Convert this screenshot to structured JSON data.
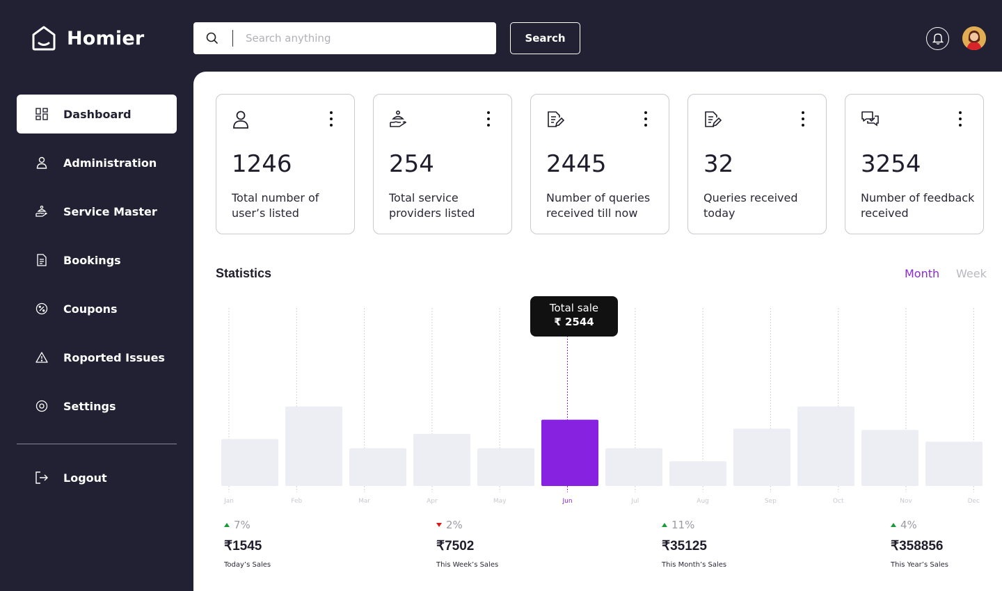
{
  "app": {
    "name": "Homier"
  },
  "header": {
    "search_placeholder": "Search anything",
    "search_button": "Search"
  },
  "sidebar": {
    "items": [
      {
        "label": "Dashboard",
        "icon": "dashboard-icon",
        "active": true
      },
      {
        "label": "Administration",
        "icon": "user-icon"
      },
      {
        "label": "Service Master",
        "icon": "service-hand-icon"
      },
      {
        "label": "Bookings",
        "icon": "document-icon"
      },
      {
        "label": "Coupons",
        "icon": "coupon-icon"
      },
      {
        "label": "Roported Issues",
        "icon": "warning-icon"
      },
      {
        "label": "Settings",
        "icon": "gear-icon"
      }
    ],
    "logout": "Logout"
  },
  "cards": [
    {
      "value": "1246",
      "label": "Total number of user’s listed",
      "icon": "user-icon"
    },
    {
      "value": "254",
      "label": "Total service providers listed",
      "icon": "service-hand-icon"
    },
    {
      "value": "2445",
      "label": "Number of queries received till now",
      "icon": "edit-document-icon"
    },
    {
      "value": "32",
      "label": "Queries received today",
      "icon": "edit-document-icon"
    },
    {
      "value": "3254",
      "label": "Number of feedback received",
      "icon": "chat-icon"
    }
  ],
  "statistics": {
    "title": "Statistics",
    "toggle": {
      "month": "Month",
      "week": "Week",
      "selected": "Month"
    },
    "tooltip": {
      "label": "Total sale",
      "value": "₹ 2544"
    }
  },
  "chart_data": {
    "type": "bar",
    "categories": [
      "Jan",
      "Feb",
      "Mar",
      "Apr",
      "May",
      "Jun",
      "Jul",
      "Aug",
      "Sep",
      "Oct",
      "Nov",
      "Dec"
    ],
    "values": [
      1800,
      3050,
      1450,
      2000,
      1450,
      2544,
      1450,
      950,
      2200,
      3050,
      2150,
      1700
    ],
    "highlight": "Jun",
    "ylim": [
      0,
      7200
    ],
    "colors": {
      "bar": "#eceef3",
      "highlight": "#8723e0",
      "label": "#c8c8d0",
      "label_highlight": "#8723e0"
    }
  },
  "summary": [
    {
      "change": "7%",
      "direction": "up",
      "amount": "₹1545",
      "label": "Today’s Sales"
    },
    {
      "change": "2%",
      "direction": "down",
      "amount": "₹7502",
      "label": "This Week’s Sales"
    },
    {
      "change": "11%",
      "direction": "up",
      "amount": "₹35125",
      "label": "This Month’s Sales"
    },
    {
      "change": "4%",
      "direction": "up",
      "amount": "₹358856",
      "label": "This Year’s Sales"
    }
  ]
}
